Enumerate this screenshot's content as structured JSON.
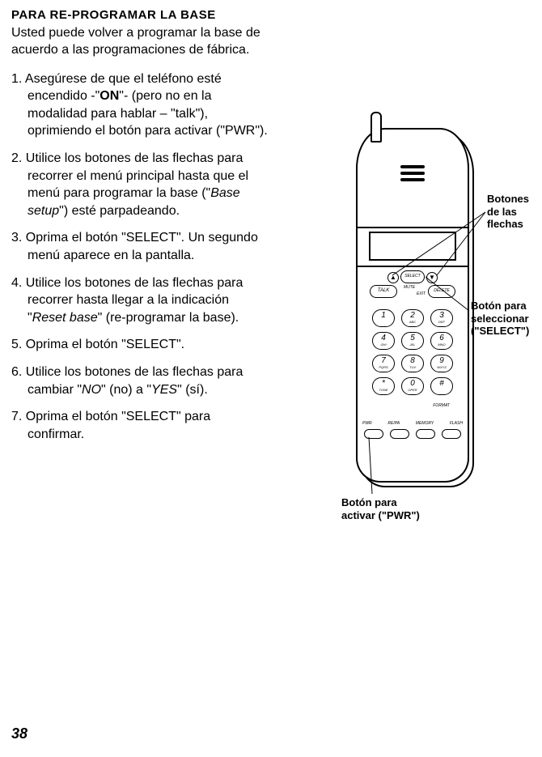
{
  "heading": "PARA RE-PROGRAMAR LA BASE",
  "intro": "Usted puede volver a programar la base de acuerdo a las programaciones de fábrica.",
  "steps": {
    "s1_a": "1. Asegúrese de que el teléfono esté encendido -\"",
    "s1_on": "ON",
    "s1_b": "\"- (pero no en la modalidad para hablar – \"talk\"), oprimiendo el botón para activar (\"PWR\").",
    "s2_a": "2. Utilice los botones de las flechas para recorrer el menú principal hasta que el menú para programar la base (\"",
    "s2_i": "Base setup",
    "s2_b": "\") esté parpadeando.",
    "s3": "3. Oprima el botón \"SELECT\". Un segundo menú aparece en la pantalla.",
    "s4_a": "4. Utilice los botones de las flechas para recorrer hasta llegar a la indicación \"",
    "s4_i": "Reset base",
    "s4_b": "\" (re-programar la base).",
    "s5": "5. Oprima el botón \"SELECT\".",
    "s6_a": "6. Utilice los botones de las flechas para cambiar \"",
    "s6_i1": "NO",
    "s6_b": "\" (no) a \"",
    "s6_i2": "YES",
    "s6_c": "\" (sí).",
    "s7": "7. Oprima el botón \"SELECT\" para confirmar."
  },
  "page_number": "38",
  "callouts": {
    "arrows": "Botones de las flechas",
    "select": "Botón para seleccionar (\"SELECT\")",
    "pwr": "Botón para activar (\"PWR\")"
  },
  "phone": {
    "select": "SELECT",
    "talk": "TALK",
    "delete": "DELETE",
    "mute": "MUTE",
    "exit": "EXIT",
    "format": "FORMAT",
    "bottom_labels": [
      "PWR",
      "RE/PA",
      "MEMORY",
      "FLASH"
    ],
    "keys": [
      {
        "d": "1",
        "s": ""
      },
      {
        "d": "2",
        "s": "ABC"
      },
      {
        "d": "3",
        "s": "DEF"
      },
      {
        "d": "4",
        "s": "GHI"
      },
      {
        "d": "5",
        "s": "JKL"
      },
      {
        "d": "6",
        "s": "MNO"
      },
      {
        "d": "7",
        "s": "PQRS"
      },
      {
        "d": "8",
        "s": "TUV"
      },
      {
        "d": "9",
        "s": "WXYZ"
      },
      {
        "d": "*",
        "s": "TONE"
      },
      {
        "d": "0",
        "s": "OPER"
      },
      {
        "d": "#",
        "s": ""
      }
    ],
    "arrow_up": "▲",
    "arrow_down": "▼"
  }
}
